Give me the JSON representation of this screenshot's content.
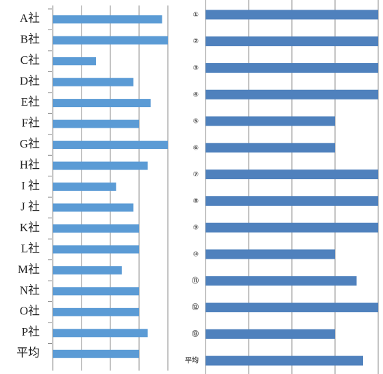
{
  "chart_data": [
    {
      "type": "bar",
      "orientation": "horizontal",
      "categories": [
        "A社",
        "B社",
        "C社",
        "D社",
        "E社",
        "F社",
        "G社",
        "H社",
        "I 社",
        "J 社",
        "K社",
        "L社",
        "M社",
        "N社",
        "O社",
        "P社",
        "平均"
      ],
      "values": [
        3.8,
        4,
        1.5,
        2.8,
        3.4,
        3,
        4,
        3.3,
        2.2,
        2.8,
        3,
        3,
        2.4,
        3,
        3,
        3.3,
        3
      ],
      "color": "#5b9bd5",
      "xlim": [
        0,
        4
      ],
      "xticks": [
        0,
        1,
        2,
        3,
        4
      ],
      "grid": true
    },
    {
      "type": "bar",
      "orientation": "horizontal",
      "categories": [
        "①",
        "②",
        "③",
        "④",
        "⑤",
        "⑥",
        "⑦",
        "⑧",
        "⑨",
        "⑩",
        "⑪",
        "⑫",
        "⑬",
        "平均"
      ],
      "values": [
        4,
        4,
        4,
        4,
        3,
        3,
        4,
        4,
        4,
        3,
        3.5,
        4,
        3,
        3.65
      ],
      "color": "#4f81bd",
      "xlim": [
        0,
        4
      ],
      "xticks": [
        0,
        1,
        2,
        3,
        4
      ],
      "grid": true
    }
  ]
}
